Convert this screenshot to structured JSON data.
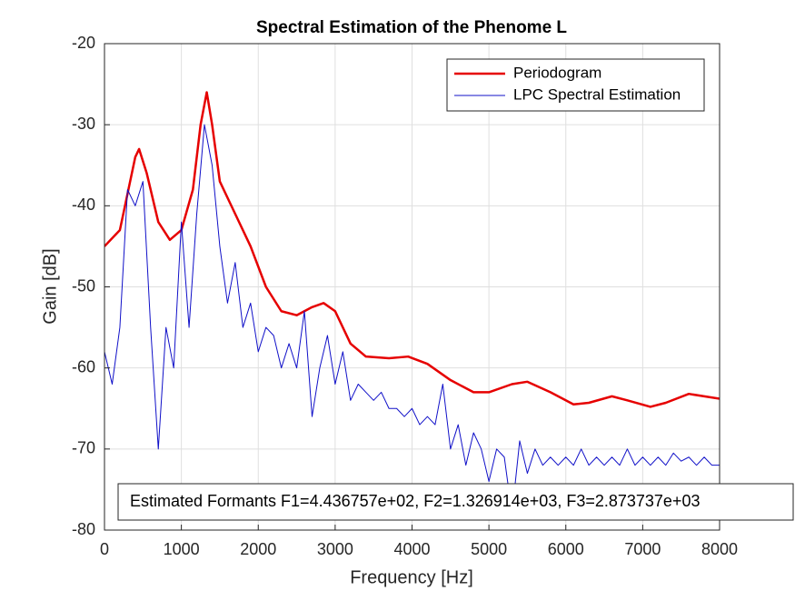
{
  "chart_data": {
    "type": "line",
    "title": "Spectral Estimation of the Phenome L",
    "xlabel": "Frequency [Hz]",
    "ylabel": "Gain [dB]",
    "annotation": "Estimated Formants F1=4.436757e+02, F2=1.326914e+03, F3=2.873737e+03",
    "xlim": [
      0,
      8000
    ],
    "xticks": [
      0,
      1000,
      2000,
      3000,
      4000,
      5000,
      6000,
      7000,
      8000
    ],
    "ylim": [
      -80,
      -20
    ],
    "yticks": [
      -80,
      -70,
      -60,
      -50,
      -40,
      -30,
      -20
    ],
    "grid": true,
    "legend": "northeast",
    "series": [
      {
        "name": "Periodogram",
        "color": "#e60000",
        "width": 2.5,
        "x": [
          0,
          200,
          400,
          450,
          550,
          700,
          850,
          1000,
          1150,
          1250,
          1330,
          1400,
          1500,
          1700,
          1900,
          2100,
          2300,
          2500,
          2700,
          2850,
          3000,
          3200,
          3400,
          3700,
          3950,
          4200,
          4500,
          4800,
          5000,
          5300,
          5500,
          5800,
          6100,
          6300,
          6600,
          6800,
          7100,
          7300,
          7600,
          7800,
          8000
        ],
        "values": [
          -45,
          -43,
          -34,
          -33,
          -36,
          -42,
          -44.2,
          -43,
          -38,
          -30,
          -26,
          -30,
          -37,
          -41,
          -45,
          -50,
          -53,
          -53.5,
          -52.5,
          -52,
          -53,
          -57,
          -58.6,
          -58.8,
          -58.6,
          -59.5,
          -61.5,
          -63,
          -63,
          -62,
          -61.7,
          -63,
          -64.5,
          -64.3,
          -63.5,
          -64,
          -64.8,
          -64.3,
          -63.2,
          -63.5,
          -63.8
        ]
      },
      {
        "name": "LPC Spectral Estimation",
        "color": "#1010c8",
        "width": 1,
        "x": [
          0,
          100,
          200,
          300,
          400,
          500,
          600,
          700,
          800,
          900,
          1000,
          1100,
          1200,
          1300,
          1400,
          1500,
          1600,
          1700,
          1800,
          1900,
          2000,
          2100,
          2200,
          2300,
          2400,
          2500,
          2600,
          2700,
          2800,
          2900,
          3000,
          3100,
          3200,
          3300,
          3400,
          3500,
          3600,
          3700,
          3800,
          3900,
          4000,
          4100,
          4200,
          4300,
          4400,
          4500,
          4600,
          4700,
          4800,
          4900,
          5000,
          5100,
          5200,
          5300,
          5400,
          5500,
          5600,
          5700,
          5800,
          5900,
          6000,
          6100,
          6200,
          6300,
          6400,
          6500,
          6600,
          6700,
          6800,
          6900,
          7000,
          7100,
          7200,
          7300,
          7400,
          7500,
          7600,
          7700,
          7800,
          7900,
          8000
        ],
        "values": [
          -58,
          -62,
          -55,
          -38,
          -40,
          -37,
          -55,
          -70,
          -55,
          -60,
          -42,
          -55,
          -41,
          -30,
          -35,
          -45,
          -52,
          -47,
          -55,
          -52,
          -58,
          -55,
          -56,
          -60,
          -57,
          -60,
          -53,
          -66,
          -60,
          -56,
          -62,
          -58,
          -64,
          -62,
          -63,
          -64,
          -63,
          -65,
          -65,
          -66,
          -65,
          -67,
          -66,
          -67,
          -62,
          -70,
          -67,
          -72,
          -68,
          -70,
          -74,
          -70,
          -71,
          -78,
          -69,
          -73,
          -70,
          -72,
          -71,
          -72,
          -71,
          -72,
          -70,
          -72,
          -71,
          -72,
          -71,
          -72,
          -70,
          -72,
          -71,
          -72,
          -71,
          -72,
          -70.5,
          -71.5,
          -71,
          -72,
          -71,
          -72,
          -72
        ]
      }
    ]
  }
}
